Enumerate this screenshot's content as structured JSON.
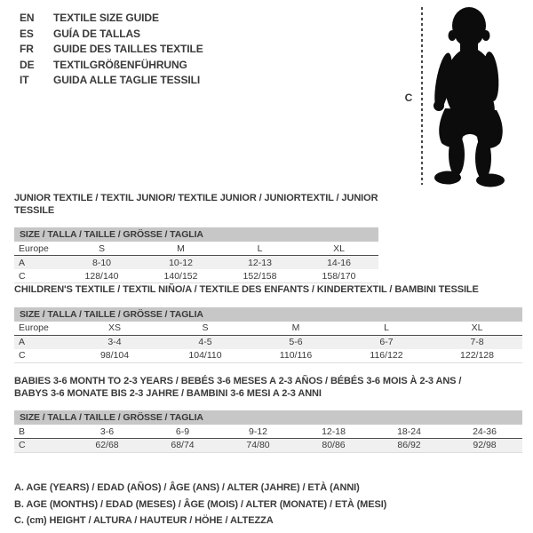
{
  "languages": [
    {
      "code": "EN",
      "label": "TEXTILE SIZE GUIDE"
    },
    {
      "code": "ES",
      "label": "GUÍA DE TALLAS"
    },
    {
      "code": "FR",
      "label": "GUIDE DES TAILLES TEXTILE"
    },
    {
      "code": "DE",
      "label": "TEXTILGRÖßENFÜHRUNG"
    },
    {
      "code": "IT",
      "label": "GUIDA ALLE TAGLIE TESSILI"
    }
  ],
  "figure": {
    "icon": "baby-silhouette",
    "measure_label": "C"
  },
  "tables": [
    {
      "title_lines": [
        "JUNIOR TEXTILE / TEXTIL JUNIOR/ TEXTILE JUNIOR / JUNIORTEXTIL / JUNIOR TESSILE"
      ],
      "size_header": "SIZE / TALLA / TAILLE / GRÖSSE / TAGLIA",
      "rows": [
        [
          "Europe",
          "S",
          "M",
          "L",
          "XL"
        ],
        [
          "A",
          "8-10",
          "10-12",
          "12-13",
          "14-16"
        ],
        [
          "C",
          "128/140",
          "140/152",
          "152/158",
          "158/170"
        ]
      ]
    },
    {
      "title_lines": [
        "CHILDREN'S TEXTILE / TEXTIL NIÑO/A / TEXTILE DES ENFANTS / KINDERTEXTIL / BAMBINI TESSILE"
      ],
      "size_header": "SIZE / TALLA / TAILLE / GRÖSSE / TAGLIA",
      "rows": [
        [
          "Europe",
          "XS",
          "S",
          "M",
          "L",
          "XL"
        ],
        [
          "A",
          "3-4",
          "4-5",
          "5-6",
          "6-7",
          "7-8"
        ],
        [
          "C",
          "98/104",
          "104/110",
          "110/116",
          "116/122",
          "122/128"
        ]
      ]
    },
    {
      "title_lines": [
        "BABIES 3-6 MONTH TO 2-3 YEARS / BEBÉS 3-6 MESES A 2-3 AÑOS / BÉBÉS 3-6 MOIS À 2-3 ANS /",
        "BABYS 3-6 MONATE BIS 2-3 JAHRE / BAMBINI 3-6 MESI A 2-3 ANNI"
      ],
      "size_header": "SIZE / TALLA / TAILLE / GRÖSSE / TAGLIA",
      "rows": [
        [
          "B",
          "3-6",
          "6-9",
          "9-12",
          "12-18",
          "18-24",
          "24-36"
        ],
        [
          "C",
          "62/68",
          "68/74",
          "74/80",
          "80/86",
          "86/92",
          "92/98"
        ]
      ]
    }
  ],
  "notes": [
    "A. AGE (YEARS) / EDAD (AÑOS) / ÂGE (ANS) / ALTER (JAHRE) / ETÀ (ANNI)",
    "B. AGE (MONTHS) / EDAD (MESES) / ÂGE (MOIS) / ALTER (MONATE) / ETÀ (MESI)",
    "C. (cm) HEIGHT / ALTURA / HAUTEUR / HÖHE / ALTEZZA"
  ],
  "colors": {
    "header_bar": "#c7c7c7",
    "shaded_row": "#f0f0f0",
    "dark_rule": "#4b4b4b",
    "light_rule": "#dcdcdc",
    "ink": "#3a3a3a",
    "silhouette": "#0c0c0c"
  }
}
